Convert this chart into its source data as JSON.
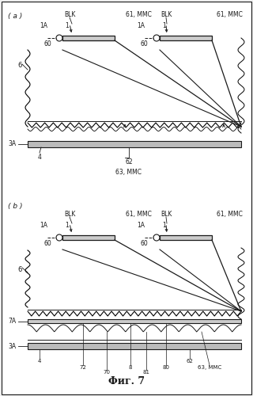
{
  "bg_color": "#f5f5f5",
  "line_color": "#1a1a1a",
  "gray_color": "#999999",
  "dark_gray": "#555555",
  "fig_label": "Фиг. 7",
  "panel_a_label": "( a )",
  "panel_b_label": "( b )"
}
